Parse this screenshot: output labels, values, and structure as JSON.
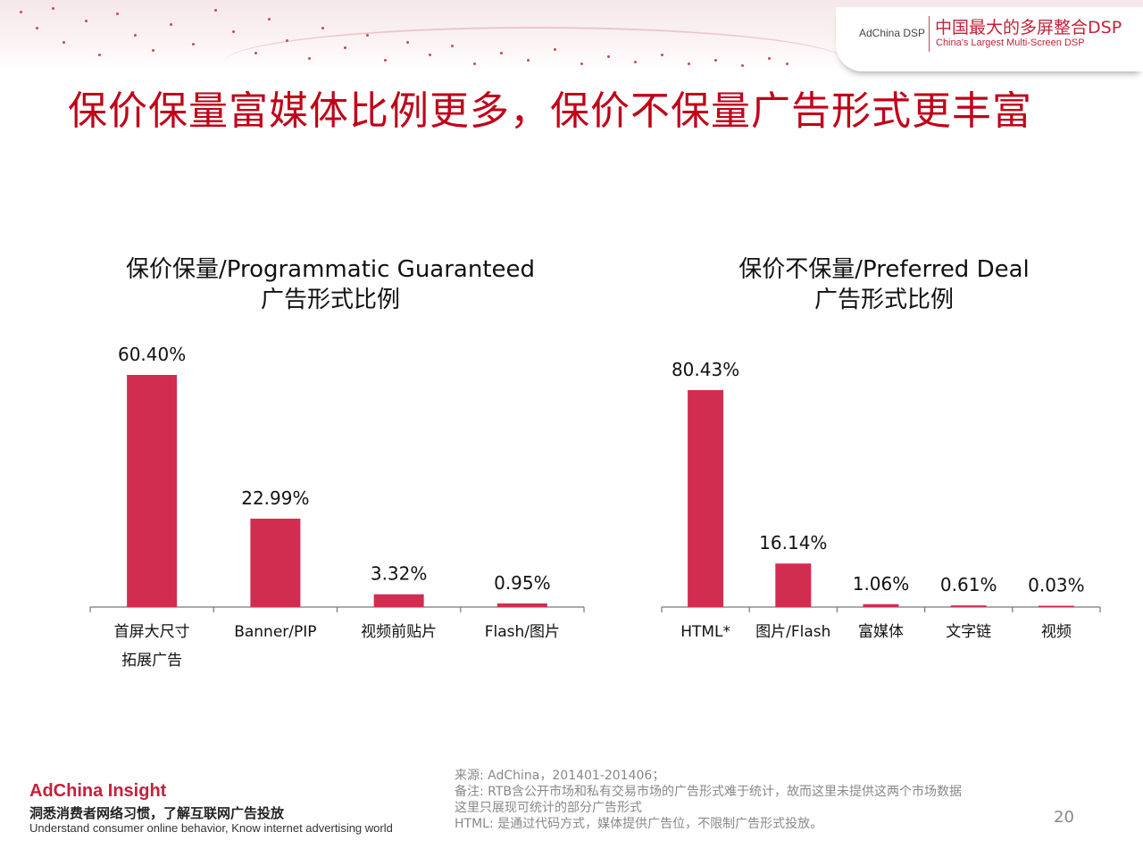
{
  "header": {
    "brand_small": "AdChina DSP",
    "brand_cn": "中国最大的多屏整合DSP",
    "brand_en": "China's Largest Multi-Screen DSP"
  },
  "main_title": "保价保量富媒体比例更多，保价不保量广告形式更丰富",
  "chart_data": [
    {
      "type": "bar",
      "title": "保价保量/Programmatic Guaranteed 广告形式比例",
      "title_lines": [
        "保价保量/Programmatic Guaranteed",
        "广告形式比例"
      ],
      "categories": [
        "首屏大尺寸拓展广告",
        "Banner/PIP",
        "视频前贴片",
        "Flash/图片"
      ],
      "category_lines": [
        [
          "首屏大尺寸",
          "拓展广告"
        ],
        [
          "Banner/PIP"
        ],
        [
          "视频前贴片"
        ],
        [
          "Flash/图片"
        ]
      ],
      "values": [
        60.4,
        22.99,
        3.32,
        0.95
      ],
      "value_labels": [
        "60.40%",
        "22.99%",
        "3.32%",
        "0.95%"
      ],
      "ylim": [
        0,
        60.4
      ],
      "bar_color": "#d12d50",
      "grid": false,
      "legend": "none"
    },
    {
      "type": "bar",
      "title": "保价不保量/Preferred Deal 广告形式比例",
      "title_lines": [
        "保价不保量/Preferred Deal",
        "广告形式比例"
      ],
      "categories": [
        "HTML*",
        "图片/Flash",
        "富媒体",
        "文字链",
        "视频"
      ],
      "category_lines": [
        [
          "HTML*"
        ],
        [
          "图片/Flash"
        ],
        [
          "富媒体"
        ],
        [
          "文字链"
        ],
        [
          "视频"
        ]
      ],
      "values": [
        80.43,
        16.14,
        1.06,
        0.61,
        0.03
      ],
      "value_labels": [
        "80.43%",
        "16.14%",
        "1.06%",
        "0.61%",
        "0.03%"
      ],
      "ylim": [
        0,
        80.43
      ],
      "bar_color": "#d12d50",
      "grid": false,
      "legend": "none"
    }
  ],
  "footer": {
    "brand": "AdChina Insight",
    "slogan_cn": "洞悉消费者网络习惯，了解互联网广告投放",
    "slogan_en": "Understand consumer online behavior, Know internet advertising world"
  },
  "notes": [
    "来源: AdChina，201401-201406；",
    "备注: RTB含公开市场和私有交易市场的广告形式难于统计，故而这里未提供这两个市场数据",
    "这里只展现可统计的部分广告形式",
    "HTML: 是通过代码方式，媒体提供广告位，不限制广告形式投放。"
  ],
  "page_number": "20"
}
